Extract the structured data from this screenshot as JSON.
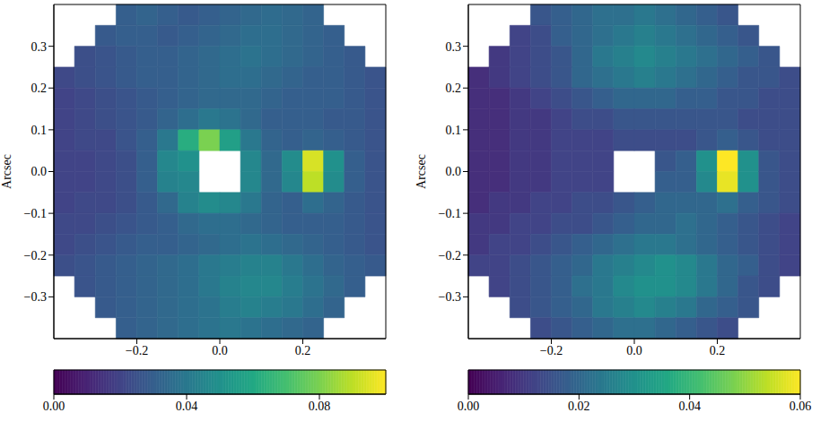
{
  "chart_data": [
    {
      "type": "heatmap",
      "ylabel": "Arcsec",
      "x": [
        -0.375,
        -0.325,
        -0.275,
        -0.225,
        -0.175,
        -0.125,
        -0.075,
        -0.025,
        0.025,
        0.075,
        0.125,
        0.175,
        0.225,
        0.275,
        0.325,
        0.375
      ],
      "y": [
        0.375,
        0.325,
        0.275,
        0.225,
        0.175,
        0.125,
        0.075,
        0.025,
        -0.025,
        -0.075,
        -0.125,
        -0.175,
        -0.225,
        -0.275,
        -0.325,
        -0.375
      ],
      "xlim": [
        -0.4,
        0.4
      ],
      "ylim": [
        -0.4,
        0.4
      ],
      "xticks": [
        {
          "value": -0.2,
          "label": "−0.2"
        },
        {
          "value": 0,
          "label": "0.0"
        },
        0.2
      ],
      "yticks": [
        {
          "value": -0.3,
          "label": "−0.3"
        },
        {
          "value": -0.2,
          "label": "−0.2"
        },
        {
          "value": -0.1,
          "label": "−0.1"
        },
        {
          "value": 0,
          "label": "0.0"
        },
        0.1,
        0.2,
        0.3
      ],
      "cells": [
        [
          null,
          null,
          null,
          0.03,
          0.032,
          0.03,
          0.028,
          0.03,
          0.032,
          0.034,
          0.035,
          0.034,
          0.032,
          null,
          null,
          null
        ],
        [
          null,
          null,
          0.028,
          0.03,
          0.03,
          0.028,
          0.03,
          0.032,
          0.034,
          0.036,
          0.036,
          0.034,
          0.032,
          0.03,
          null,
          null
        ],
        [
          null,
          0.024,
          0.026,
          0.028,
          0.03,
          0.03,
          0.032,
          0.034,
          0.036,
          0.038,
          0.036,
          0.034,
          0.032,
          0.03,
          0.028,
          null
        ],
        [
          0.022,
          0.024,
          0.026,
          0.028,
          0.03,
          0.03,
          0.032,
          0.034,
          0.036,
          0.036,
          0.034,
          0.032,
          0.03,
          0.03,
          0.028,
          0.026
        ],
        [
          0.02,
          0.022,
          0.024,
          0.026,
          0.028,
          0.03,
          0.032,
          0.034,
          0.034,
          0.034,
          0.032,
          0.03,
          0.03,
          0.03,
          0.028,
          0.026
        ],
        [
          0.02,
          0.022,
          0.024,
          0.026,
          0.028,
          0.032,
          0.036,
          0.04,
          0.038,
          0.034,
          0.03,
          0.03,
          0.03,
          0.028,
          0.028,
          0.026
        ],
        [
          0.02,
          0.022,
          0.022,
          0.026,
          0.03,
          0.04,
          0.062,
          0.08,
          0.056,
          0.04,
          0.032,
          0.03,
          0.032,
          0.03,
          0.028,
          0.026
        ],
        [
          0.02,
          0.02,
          0.022,
          0.024,
          0.03,
          0.046,
          0.05,
          null,
          null,
          0.046,
          0.034,
          0.048,
          0.094,
          0.05,
          0.03,
          0.026
        ],
        [
          0.02,
          0.02,
          0.022,
          0.024,
          0.03,
          0.044,
          0.046,
          null,
          null,
          0.046,
          0.034,
          0.046,
          0.09,
          0.048,
          0.03,
          0.026
        ],
        [
          0.02,
          0.022,
          0.022,
          0.024,
          0.028,
          0.034,
          0.044,
          0.048,
          0.046,
          0.04,
          0.032,
          0.03,
          0.036,
          0.032,
          0.028,
          0.026
        ],
        [
          0.022,
          0.022,
          0.024,
          0.026,
          0.028,
          0.03,
          0.034,
          0.036,
          0.036,
          0.034,
          0.032,
          0.03,
          0.03,
          0.03,
          0.028,
          0.026
        ],
        [
          0.022,
          0.024,
          0.026,
          0.028,
          0.03,
          0.03,
          0.032,
          0.034,
          0.036,
          0.038,
          0.036,
          0.034,
          0.032,
          0.03,
          0.028,
          0.026
        ],
        [
          0.024,
          0.026,
          0.028,
          0.03,
          0.032,
          0.034,
          0.036,
          0.04,
          0.042,
          0.044,
          0.044,
          0.04,
          0.036,
          0.032,
          0.03,
          0.028
        ],
        [
          null,
          0.026,
          0.028,
          0.03,
          0.032,
          0.034,
          0.036,
          0.04,
          0.044,
          0.046,
          0.046,
          0.042,
          0.038,
          0.034,
          0.03,
          null
        ],
        [
          null,
          null,
          0.028,
          0.03,
          0.032,
          0.034,
          0.036,
          0.038,
          0.042,
          0.044,
          0.042,
          0.04,
          0.036,
          0.032,
          null,
          null
        ],
        [
          null,
          null,
          null,
          0.03,
          0.032,
          0.034,
          0.036,
          0.038,
          0.04,
          0.038,
          0.036,
          0.034,
          0.032,
          null,
          null,
          null
        ]
      ],
      "colorbar_range": [
        0,
        0.1
      ],
      "colorbar_ticks": [
        {
          "value": 0,
          "label": "0.00"
        },
        0.04,
        0.08
      ]
    },
    {
      "type": "heatmap",
      "ylabel": "Arcsec",
      "x": [
        -0.375,
        -0.325,
        -0.275,
        -0.225,
        -0.175,
        -0.125,
        -0.075,
        -0.025,
        0.025,
        0.075,
        0.125,
        0.175,
        0.225,
        0.275,
        0.325,
        0.375
      ],
      "y": [
        0.375,
        0.325,
        0.275,
        0.225,
        0.175,
        0.125,
        0.075,
        0.025,
        -0.025,
        -0.075,
        -0.125,
        -0.175,
        -0.225,
        -0.275,
        -0.325,
        -0.375
      ],
      "xlim": [
        -0.4,
        0.4
      ],
      "ylim": [
        -0.4,
        0.4
      ],
      "xticks": [
        {
          "value": -0.2,
          "label": "−0.2"
        },
        {
          "value": 0,
          "label": "0.0"
        },
        0.2
      ],
      "yticks": [
        {
          "value": -0.3,
          "label": "−0.3"
        },
        {
          "value": -0.2,
          "label": "−0.2"
        },
        {
          "value": -0.1,
          "label": "−0.1"
        },
        {
          "value": 0,
          "label": "0.0"
        },
        0.1,
        0.2,
        0.3
      ],
      "cells": [
        [
          null,
          null,
          null,
          0.016,
          0.018,
          0.02,
          0.022,
          0.022,
          0.024,
          0.022,
          0.02,
          0.018,
          0.016,
          null,
          null,
          null
        ],
        [
          null,
          null,
          0.012,
          0.014,
          0.018,
          0.02,
          0.022,
          0.024,
          0.026,
          0.024,
          0.022,
          0.02,
          0.018,
          0.016,
          null,
          null
        ],
        [
          null,
          0.01,
          0.012,
          0.014,
          0.016,
          0.02,
          0.024,
          0.026,
          0.028,
          0.026,
          0.024,
          0.022,
          0.02,
          0.018,
          0.016,
          null
        ],
        [
          0.008,
          0.01,
          0.012,
          0.014,
          0.016,
          0.02,
          0.022,
          0.024,
          0.026,
          0.024,
          0.022,
          0.02,
          0.018,
          0.016,
          0.016,
          0.014
        ],
        [
          0.008,
          0.008,
          0.01,
          0.012,
          0.014,
          0.016,
          0.018,
          0.02,
          0.02,
          0.02,
          0.018,
          0.018,
          0.016,
          0.016,
          0.014,
          0.014
        ],
        [
          0.008,
          0.008,
          0.01,
          0.01,
          0.012,
          0.014,
          0.014,
          0.016,
          0.016,
          0.016,
          0.016,
          0.016,
          0.016,
          0.014,
          0.014,
          0.014
        ],
        [
          0.008,
          0.008,
          0.01,
          0.01,
          0.012,
          0.012,
          0.012,
          0.014,
          0.014,
          0.014,
          0.014,
          0.016,
          0.018,
          0.016,
          0.014,
          0.014
        ],
        [
          0.008,
          0.008,
          0.01,
          0.01,
          0.012,
          0.012,
          0.012,
          null,
          null,
          0.016,
          0.018,
          0.03,
          0.06,
          0.03,
          0.016,
          0.014
        ],
        [
          0.008,
          0.008,
          0.01,
          0.01,
          0.012,
          0.012,
          0.012,
          null,
          null,
          0.018,
          0.018,
          0.028,
          0.058,
          0.03,
          0.016,
          0.014
        ],
        [
          0.008,
          0.01,
          0.01,
          0.012,
          0.012,
          0.014,
          0.014,
          0.016,
          0.018,
          0.02,
          0.02,
          0.02,
          0.022,
          0.018,
          0.016,
          0.014
        ],
        [
          0.01,
          0.01,
          0.012,
          0.012,
          0.014,
          0.014,
          0.016,
          0.018,
          0.02,
          0.02,
          0.022,
          0.02,
          0.018,
          0.016,
          0.014,
          0.012
        ],
        [
          0.01,
          0.012,
          0.012,
          0.014,
          0.016,
          0.018,
          0.02,
          0.022,
          0.024,
          0.024,
          0.022,
          0.02,
          0.018,
          0.016,
          0.014,
          0.012
        ],
        [
          0.012,
          0.012,
          0.014,
          0.016,
          0.018,
          0.02,
          0.024,
          0.026,
          0.028,
          0.03,
          0.028,
          0.024,
          0.02,
          0.018,
          0.014,
          0.012
        ],
        [
          null,
          0.012,
          0.014,
          0.016,
          0.018,
          0.022,
          0.024,
          0.028,
          0.03,
          0.03,
          0.028,
          0.024,
          0.02,
          0.016,
          0.014,
          null
        ],
        [
          null,
          null,
          0.014,
          0.016,
          0.018,
          0.02,
          0.024,
          0.026,
          0.028,
          0.026,
          0.024,
          0.02,
          0.018,
          0.016,
          null,
          null
        ],
        [
          null,
          null,
          null,
          0.014,
          0.016,
          0.018,
          0.02,
          0.022,
          0.022,
          0.02,
          0.018,
          0.016,
          0.014,
          null,
          null,
          null
        ]
      ],
      "colorbar_range": [
        0,
        0.06
      ],
      "colorbar_ticks": [
        {
          "value": 0,
          "label": "0.00"
        },
        0.02,
        0.04,
        0.06
      ]
    }
  ]
}
